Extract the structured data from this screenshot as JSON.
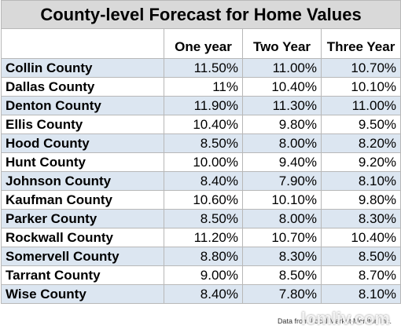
{
  "title": "County-level Forecast for Home Values",
  "table": {
    "header": [
      "One year",
      "Two Year",
      "Three Year"
    ],
    "rows": [
      [
        "Collin County",
        "11.50%",
        "11.00%",
        "10.70%"
      ],
      [
        "Dallas County",
        "11%",
        "10.40%",
        "10.10%"
      ],
      [
        "Denton County",
        "11.90%",
        "11.30%",
        "11.00%"
      ],
      [
        "Ellis County",
        "10.40%",
        "9.80%",
        "9.50%"
      ],
      [
        "Hood County",
        "8.50%",
        "8.00%",
        "8.20%"
      ],
      [
        "Hunt County",
        "10.00%",
        "9.40%",
        "9.20%"
      ],
      [
        "Johnson County",
        "8.40%",
        "7.90%",
        "8.10%"
      ],
      [
        "Kaufman County",
        "10.60%",
        "10.10%",
        "9.80%"
      ],
      [
        "Parker County",
        "8.50%",
        "8.00%",
        "8.30%"
      ],
      [
        "Rockwall County",
        "11.20%",
        "10.70%",
        "10.40%"
      ],
      [
        "Somervell County",
        "8.80%",
        "8.30%",
        "8.50%"
      ],
      [
        "Tarrant County",
        "9.00%",
        "8.50%",
        "8.70%"
      ],
      [
        "Wise County",
        "8.40%",
        "7.80%",
        "8.10%"
      ]
    ]
  },
  "footer": "Data from Local Market Monitor, Inc.",
  "watermark": "lomliv.com"
}
